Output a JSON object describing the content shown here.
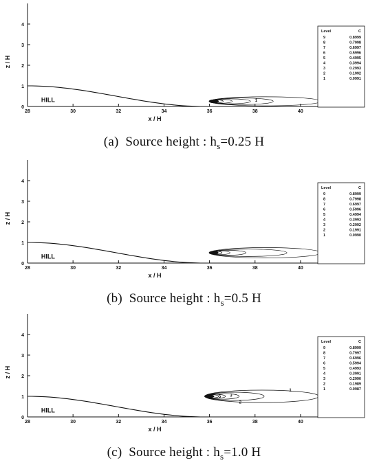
{
  "chart_data": [
    {
      "type": "contour",
      "caption": {
        "tag": "(a)",
        "text": "Source height : h",
        "sub": "s",
        "rest": "=0.25 H"
      },
      "xlabel": "x / H",
      "ylabel": "z / H",
      "xlim": [
        28,
        41
      ],
      "ylim": [
        0,
        5
      ],
      "xticks": [
        "28",
        "30",
        "32",
        "34",
        "36",
        "38",
        "40"
      ],
      "yticks": [
        "0",
        "1",
        "2",
        "3",
        "4"
      ],
      "annotation": "HILL",
      "source": {
        "x": 36.0,
        "z": 0.25
      },
      "legend": {
        "header": [
          "Level",
          "C"
        ],
        "levels": [
          "9",
          "8",
          "7",
          "6",
          "5",
          "4",
          "3",
          "2",
          "1"
        ],
        "values": [
          "0.8999",
          "0.7998",
          "0.6997",
          "0.5996",
          "0.4995",
          "0.3994",
          "0.2993",
          "0.1992",
          "0.0991"
        ]
      },
      "plume_extents": [
        4.9,
        2.8,
        1.8,
        1.0,
        0.6,
        0.4,
        0.3,
        0.2,
        0.12
      ],
      "plume_halfwidth": [
        0.22,
        0.16,
        0.12,
        0.09,
        0.07,
        0.05,
        0.04,
        0.03,
        0.02
      ],
      "contour_labels": [
        {
          "text": "1",
          "x": 38.0,
          "z": 0.3
        }
      ]
    },
    {
      "type": "contour",
      "caption": {
        "tag": "(b)",
        "text": "Source height : h",
        "sub": "s",
        "rest": "=0.5 H"
      },
      "xlabel": "x / H",
      "ylabel": "z / H",
      "xlim": [
        28,
        41
      ],
      "ylim": [
        0,
        5
      ],
      "xticks": [
        "28",
        "30",
        "32",
        "34",
        "36",
        "38",
        "40"
      ],
      "yticks": [
        "0",
        "1",
        "2",
        "3",
        "4"
      ],
      "annotation": "HILL",
      "source": {
        "x": 36.0,
        "z": 0.5
      },
      "legend": {
        "header": [
          "Level",
          "C"
        ],
        "levels": [
          "9",
          "8",
          "7",
          "6",
          "5",
          "4",
          "3",
          "2",
          "1"
        ],
        "values": [
          "0.8999",
          "0.7998",
          "0.6997",
          "0.5996",
          "0.4994",
          "0.3993",
          "0.2992",
          "0.1991",
          "0.0990"
        ]
      },
      "plume_extents": [
        4.9,
        3.4,
        1.6,
        0.9,
        0.55,
        0.35,
        0.25,
        0.15,
        0.1
      ],
      "plume_halfwidth": [
        0.25,
        0.18,
        0.12,
        0.09,
        0.07,
        0.05,
        0.04,
        0.03,
        0.02
      ],
      "contour_labels": []
    },
    {
      "type": "contour",
      "caption": {
        "tag": "(c)",
        "text": "Source height : h",
        "sub": "s",
        "rest": "=1.0 H"
      },
      "xlabel": "x / H",
      "ylabel": "z / H",
      "xlim": [
        28,
        41
      ],
      "ylim": [
        0,
        5
      ],
      "xticks": [
        "28",
        "30",
        "32",
        "34",
        "36",
        "38",
        "40"
      ],
      "yticks": [
        "0",
        "1",
        "2",
        "3",
        "4"
      ],
      "annotation": "HILL",
      "source": {
        "x": 35.8,
        "z": 1.0
      },
      "legend": {
        "header": [
          "Level",
          "C"
        ],
        "levels": [
          "9",
          "8",
          "7",
          "6",
          "5",
          "4",
          "3",
          "2",
          "1"
        ],
        "values": [
          "0.8999",
          "0.7997",
          "0.6996",
          "0.5994",
          "0.4993",
          "0.3991",
          "0.2990",
          "0.1989",
          "0.0987"
        ]
      },
      "plume_extents": [
        5.0,
        2.6,
        1.5,
        0.9,
        0.6,
        0.4,
        0.3,
        0.2,
        0.12
      ],
      "plume_halfwidth": [
        0.3,
        0.2,
        0.14,
        0.1,
        0.08,
        0.06,
        0.05,
        0.04,
        0.03
      ],
      "contour_labels": [
        {
          "text": "1",
          "x": 39.5,
          "z": 1.3
        },
        {
          "text": "2",
          "x": 37.3,
          "z": 0.72
        },
        {
          "text": "3",
          "x": 36.9,
          "z": 1.05
        },
        {
          "text": "5",
          "x": 36.4,
          "z": 1.0
        },
        {
          "text": "7",
          "x": 36.0,
          "z": 1.0
        }
      ]
    }
  ]
}
